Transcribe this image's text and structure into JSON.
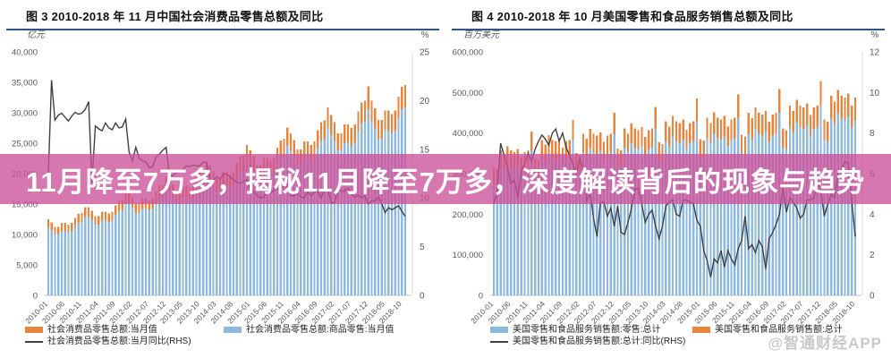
{
  "banner": {
    "text": "11月降至7万多，揭秘11月降至7万多，深度解读背后的现象与趋势",
    "bg_color": "rgba(202,81,153,0.78)",
    "text_color": "#ffffff"
  },
  "watermark": "@智通财经APP",
  "accent_colors": {
    "orange": "#E8853D",
    "blue": "#8DB8DF",
    "line": "#404040",
    "title_rule": "#2A5783"
  },
  "chart_data": [
    {
      "type": "bar",
      "subtype": "overlapped-bars-plus-line",
      "title": "图 3  2010-2018 年 11 月中国社会消费品零售总额及同比",
      "left_axis": {
        "unit": "亿元",
        "max": 40000,
        "ticks": [
          "40,000",
          "35,000",
          "30,000",
          "25,000",
          "20,000",
          "15,000",
          "10,000",
          "5,000",
          "0"
        ]
      },
      "right_axis": {
        "unit": "%",
        "max": 25,
        "ticks": [
          "25",
          "20",
          "15",
          "10",
          "5",
          "0"
        ]
      },
      "x_ticks": [
        "2010-01",
        "2010-06",
        "2010-11",
        "2011-04",
        "2011-09",
        "2012-02",
        "2012-07",
        "2012-12",
        "2013-05",
        "2013-10",
        "2014-03",
        "2014-08",
        "2015-01",
        "2015-06",
        "2015-11",
        "2016-04",
        "2016-09",
        "2017-02",
        "2017-07",
        "2017-12",
        "2018-05",
        "2018-10"
      ],
      "grid": false,
      "legend_position": "bottom",
      "bar_draw_order": [
        0,
        1
      ],
      "legend_rows": [
        [
          0,
          1
        ],
        [
          2
        ]
      ],
      "series": [
        {
          "name": "社会消费品零售总额:当月值",
          "type": "bar",
          "axis": "left",
          "color": "#E8853D",
          "values": [
            12500,
            12000,
            11250,
            11250,
            11880,
            11880,
            11630,
            11880,
            12750,
            13380,
            13500,
            14500,
            14500,
            13920,
            13050,
            13050,
            13780,
            13780,
            13490,
            13780,
            14790,
            15520,
            15660,
            16820,
            16800,
            16130,
            15120,
            15120,
            15960,
            15960,
            15620,
            15960,
            17140,
            17980,
            18140,
            19490,
            19000,
            18240,
            17100,
            17100,
            18050,
            18050,
            17670,
            18050,
            19380,
            20330,
            20520,
            22040,
            21300,
            20450,
            19170,
            19170,
            20240,
            20240,
            19810,
            20240,
            21730,
            22790,
            23000,
            24710,
            23800,
            22850,
            21420,
            21420,
            22610,
            22610,
            22130,
            22610,
            24280,
            25470,
            25700,
            27610,
            26600,
            25540,
            23940,
            23940,
            25270,
            25270,
            24740,
            25270,
            27130,
            28460,
            28730,
            30860,
            29600,
            28420,
            26640,
            26640,
            28120,
            28120,
            27530,
            28120,
            30190,
            31670,
            31970,
            34340,
            32000,
            30720,
            28800,
            28800,
            30400,
            30400,
            29760,
            30400,
            32640,
            34240,
            34560
          ]
        },
        {
          "name": "社会消费品零售总额:商品零售:当月值",
          "type": "bar",
          "axis": "left",
          "color": "#8DB8DF",
          "values": [
            11160,
            10720,
            10050,
            10050,
            10610,
            10610,
            10390,
            10610,
            11390,
            11950,
            12060,
            12950,
            12950,
            12430,
            11650,
            11650,
            12310,
            12310,
            12050,
            12310,
            13210,
            13860,
            13980,
            15020,
            15000,
            14400,
            13500,
            13500,
            14250,
            14250,
            13950,
            14250,
            15310,
            16060,
            16200,
            17400,
            16970,
            16290,
            15270,
            15270,
            16120,
            16120,
            15780,
            16120,
            17310,
            18150,
            18320,
            19680,
            19020,
            18260,
            17120,
            17120,
            18070,
            18070,
            17690,
            18070,
            19410,
            20350,
            20540,
            22070,
            21250,
            20400,
            19130,
            19130,
            20190,
            20190,
            19760,
            20190,
            21680,
            22740,
            22950,
            24660,
            23750,
            22810,
            21380,
            21380,
            22570,
            22570,
            22090,
            22570,
            24230,
            25410,
            25660,
            27560,
            26430,
            25380,
            23790,
            23790,
            25110,
            25110,
            24580,
            25110,
            26960,
            28280,
            28550,
            30670,
            28580,
            27430,
            25720,
            25720,
            27150,
            27150,
            26580,
            27150,
            29150,
            30580,
            30860
          ]
        },
        {
          "name": "社会消费品零售总额:当月同比(RHS)",
          "type": "line",
          "axis": "right",
          "color": "#404040",
          "values": [
            12.0,
            22.1,
            18.0,
            18.5,
            18.7,
            18.3,
            17.9,
            18.4,
            18.8,
            18.6,
            18.7,
            19.1,
            19.9,
            11.6,
            17.4,
            17.1,
            16.9,
            17.7,
            17.2,
            17.0,
            17.7,
            17.2,
            17.3,
            18.1,
            14.7,
            13.8,
            15.2,
            14.1,
            13.8,
            13.7,
            13.1,
            13.2,
            14.2,
            14.5,
            14.9,
            15.2,
            12.3,
            12.3,
            12.6,
            12.8,
            12.9,
            13.3,
            13.2,
            13.4,
            13.3,
            13.3,
            13.7,
            13.6,
            11.8,
            11.8,
            12.2,
            11.9,
            12.5,
            12.4,
            12.2,
            11.9,
            11.6,
            11.5,
            11.7,
            11.9,
            10.7,
            10.7,
            10.2,
            10.0,
            10.1,
            10.6,
            10.5,
            10.8,
            10.9,
            11.0,
            11.2,
            11.1,
            10.2,
            10.2,
            10.5,
            10.1,
            10.0,
            10.6,
            10.2,
            10.6,
            10.7,
            10.0,
            10.8,
            10.9,
            9.5,
            9.5,
            10.9,
            10.7,
            10.7,
            11.0,
            10.4,
            10.1,
            10.3,
            10.0,
            10.2,
            9.4,
            9.7,
            9.7,
            10.1,
            9.4,
            8.5,
            9.0,
            8.8,
            9.0,
            9.2,
            8.6,
            8.1
          ]
        }
      ]
    },
    {
      "type": "bar",
      "subtype": "overlapped-bars-plus-line",
      "title": "图 4  2010-2018 年 10 月美国零售和食品服务销售总额及同比",
      "left_axis": {
        "unit": "百万美元",
        "max": 600000,
        "ticks": [
          "600,000",
          "500,000",
          "400,000",
          "300,000",
          "200,000",
          "100,000",
          "0"
        ]
      },
      "right_axis": {
        "unit": "%",
        "max": 12,
        "ticks": [
          "12",
          "10",
          "8",
          "6",
          "4",
          "2",
          "0"
        ]
      },
      "x_ticks": [
        "2010-01",
        "2010-06",
        "2010-11",
        "2011-04",
        "2011-09",
        "2012-02",
        "2012-07",
        "2012-12",
        "2013-05",
        "2013-10",
        "2014-03",
        "2014-08",
        "2015-01",
        "2015-06",
        "2015-11",
        "2016-04",
        "2016-09",
        "2017-02",
        "2017-07",
        "2017-12",
        "2018-05",
        "2018-10"
      ],
      "grid": false,
      "legend_position": "bottom",
      "bar_draw_order": [
        1,
        0
      ],
      "legend_rows": [
        [
          0,
          1
        ],
        [
          2
        ]
      ],
      "series": [
        {
          "name": "美国零售和食品服务销售额:零售:总计",
          "type": "bar",
          "axis": "left",
          "color": "#8DB8DF",
          "values": [
            278100,
            274900,
            315900,
            306500,
            325400,
            315900,
            312800,
            319100,
            300200,
            312800,
            315900,
            357000,
            298200,
            294900,
            339000,
            328800,
            349100,
            339000,
            335600,
            342300,
            322100,
            335600,
            339000,
            383000,
            309900,
            306500,
            352200,
            341700,
            362800,
            352200,
            348700,
            355800,
            334600,
            348700,
            352200,
            398000,
            320100,
            316500,
            363700,
            352800,
            374600,
            363700,
            360100,
            367400,
            345600,
            360100,
            363700,
            411000,
            334100,
            330300,
            379700,
            368200,
            391100,
            379700,
            375900,
            383500,
            360700,
            375900,
            379700,
            429000,
            341100,
            337300,
            387600,
            376000,
            399200,
            387600,
            383700,
            391500,
            368200,
            383700,
            387600,
            438000,
            350500,
            346500,
            398300,
            386300,
            410200,
            398300,
            394300,
            402200,
            378300,
            394300,
            398300,
            450000,
            364400,
            360400,
            414200,
            401800,
            426600,
            414200,
            410000,
            418300,
            393500,
            410000,
            414200,
            468000,
            383200,
            378800,
            435400,
            422300,
            448500,
            435400,
            431100,
            439800,
            413600,
            431100
          ]
        },
        {
          "name": "美国零售和食品服务销售额:总计",
          "type": "bar",
          "axis": "left",
          "color": "#E8853D",
          "values": [
            314200,
            310600,
            357000,
            346300,
            367700,
            357000,
            353400,
            360600,
            339200,
            353400,
            357000,
            403400,
            337000,
            333200,
            383000,
            371500,
            394500,
            383000,
            379200,
            386800,
            363900,
            379200,
            383000,
            432800,
            350200,
            346300,
            398000,
            386100,
            409900,
            398000,
            394000,
            402000,
            378100,
            394000,
            398000,
            449700,
            361700,
            357600,
            411000,
            398700,
            423300,
            411000,
            406900,
            415100,
            390500,
            406900,
            411000,
            464400,
            377500,
            373200,
            429000,
            416100,
            441900,
            429000,
            424700,
            433300,
            407600,
            424700,
            429000,
            484800,
            385400,
            381100,
            438000,
            424900,
            451100,
            438000,
            433600,
            442400,
            416100,
            433600,
            438000,
            494900,
            396000,
            391500,
            450000,
            436500,
            463500,
            450000,
            445500,
            454500,
            427500,
            445500,
            450000,
            508500,
            411800,
            407200,
            468000,
            454000,
            482000,
            468000,
            463300,
            472700,
            444600,
            463300,
            468000,
            528800,
            433000,
            428000,
            492000,
            477200,
            506800,
            492000,
            487100,
            496900,
            467400,
            487100
          ]
        },
        {
          "name": "美国零售和食品服务销售额:总计:同比(RHS)",
          "type": "line",
          "axis": "right",
          "color": "#404040",
          "values": [
            4.5,
            5.1,
            7.5,
            6.9,
            6.3,
            5.5,
            5.7,
            4.8,
            6.1,
            6.5,
            7.0,
            6.6,
            7.2,
            7.6,
            7.9,
            7.7,
            7.4,
            8.0,
            8.2,
            7.6,
            8.0,
            7.3,
            6.9,
            6.5,
            5.9,
            6.8,
            6.1,
            4.6,
            5.1,
            3.8,
            2.9,
            4.6,
            4.6,
            3.9,
            4.3,
            3.4,
            4.4,
            3.1,
            3.0,
            3.6,
            4.3,
            5.2,
            5.3,
            4.5,
            3.6,
            4.0,
            4.2,
            3.4,
            2.8,
            3.4,
            4.4,
            4.6,
            4.7,
            4.0,
            3.9,
            4.7,
            4.7,
            4.6,
            4.5,
            3.7,
            3.4,
            2.2,
            1.7,
            0.9,
            1.8,
            1.6,
            2.2,
            1.4,
            2.2,
            1.8,
            1.5,
            2.3,
            2.7,
            3.9,
            2.3,
            2.5,
            2.1,
            2.7,
            2.4,
            1.3,
            2.8,
            3.1,
            3.5,
            4.0,
            5.3,
            4.1,
            4.8,
            4.6,
            4.3,
            3.8,
            4.0,
            4.7,
            4.7,
            4.8,
            5.6,
            5.2,
            3.9,
            4.5,
            5.0,
            4.8,
            6.0,
            6.2,
            6.6,
            6.5,
            4.6,
            2.9
          ]
        }
      ]
    }
  ]
}
